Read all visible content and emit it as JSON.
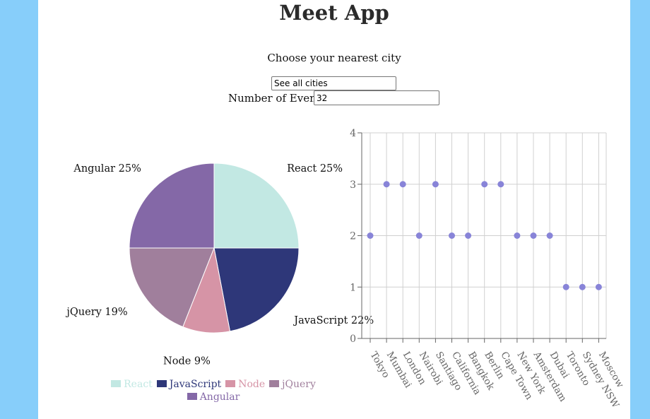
{
  "app": {
    "title": "Meet App"
  },
  "city_search": {
    "label": "Choose your nearest city",
    "value": "See all cities"
  },
  "number_of_events": {
    "label": "Number of Events:",
    "value": "32"
  },
  "chart_data": [
    {
      "type": "pie",
      "labels": [
        "React",
        "JavaScript",
        "Node",
        "jQuery",
        "Angular"
      ],
      "values": [
        25,
        22,
        9,
        19,
        25
      ],
      "percent_labels": [
        "React 25%",
        "JavaScript 22%",
        "Node 9%",
        "jQuery 19%",
        "Angular 25%"
      ],
      "colors": [
        "#c2e8e3",
        "#2e3779",
        "#d694a6",
        "#a07f9c",
        "#8468a7"
      ],
      "legend_position": "bottom"
    },
    {
      "type": "scatter",
      "categories": [
        "Tokyo",
        "Mumbai",
        "London",
        "Nairobi",
        "Santiago",
        "California",
        "Bangkok",
        "Berlin",
        "Cape Town",
        "New York",
        "Amsterdam",
        "Dubai",
        "Toronto",
        "Sydney NSW",
        "Moscow"
      ],
      "values": [
        2,
        3,
        3,
        2,
        3,
        2,
        2,
        3,
        3,
        2,
        2,
        2,
        1,
        1,
        1
      ],
      "ylim": [
        0,
        4
      ],
      "yticks": [
        "0",
        "1",
        "2",
        "3",
        "4"
      ],
      "grid": true,
      "point_color": "#8884d8"
    }
  ]
}
